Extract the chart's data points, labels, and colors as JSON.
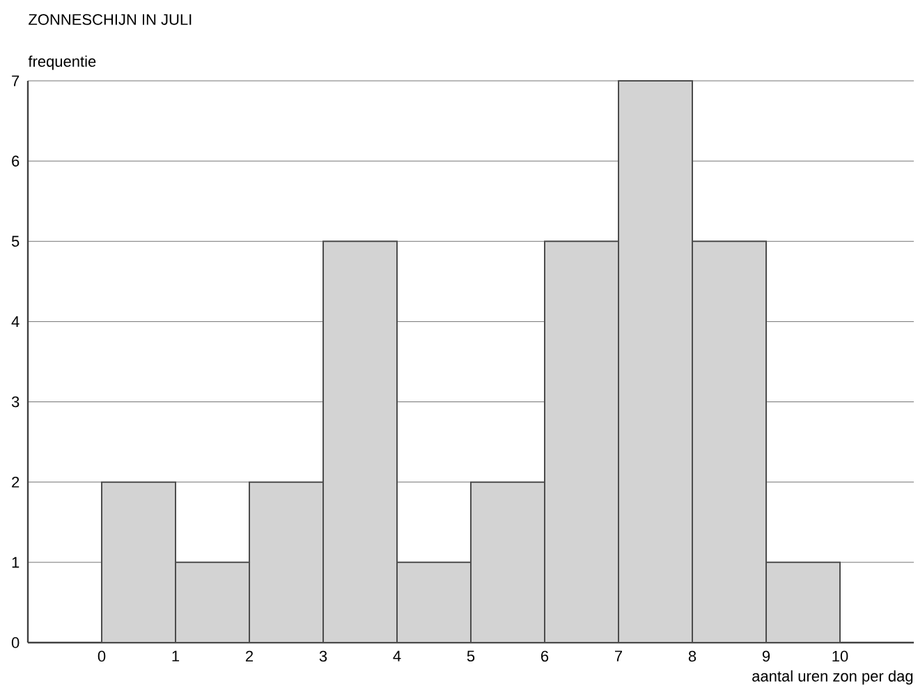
{
  "chart_data": {
    "type": "histogram",
    "title": "ZONNESCHIJN IN JULI",
    "xlabel": "aantal uren zon per dag",
    "ylabel": "frequentie",
    "bins": [
      0,
      1,
      2,
      3,
      4,
      5,
      6,
      7,
      8,
      9,
      10
    ],
    "values": [
      2,
      1,
      2,
      5,
      1,
      2,
      5,
      7,
      5,
      1
    ],
    "color": "#d3d3d3",
    "xlim": [
      -1,
      11
    ],
    "ylim": [
      0,
      7
    ],
    "xticks": [
      0,
      1,
      2,
      3,
      4,
      5,
      6,
      7,
      8,
      9,
      10
    ],
    "yticks": [
      0,
      1,
      2,
      3,
      4,
      5,
      6,
      7
    ],
    "grid": "y"
  }
}
